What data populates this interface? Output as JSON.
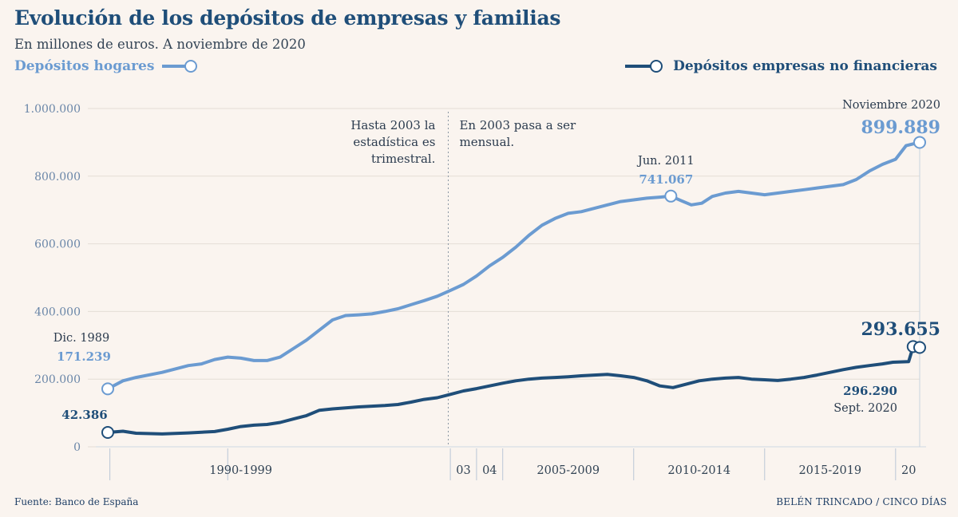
{
  "header": {
    "title": "Evolución de los depósitos de empresas y familias",
    "subtitle": "En millones de euros. A noviembre de 2020"
  },
  "legend": {
    "households": "Depósitos hogares",
    "companies": "Depósitos empresas no financieras"
  },
  "footer": {
    "source": "Fuente: Banco de España",
    "credit": "BELÉN TRINCADO / CINCO DÍAS"
  },
  "notes": {
    "before_2003": [
      "Hasta 2003 la",
      "estadística es",
      "trimestral."
    ],
    "after_2003": [
      "En 2003 pasa a ser",
      "mensual."
    ]
  },
  "annotations": {
    "hh_start_label": "Dic. 1989",
    "hh_start_value": "171.239",
    "co_start_value": "42.386",
    "hh_peak_label": "Jun. 2011",
    "hh_peak_value": "741.067",
    "hh_end_label": "Noviembre 2020",
    "hh_end_value": "899.889",
    "co_end_value": "293.655",
    "co_sept_value": "296.290",
    "co_sept_label": "Sept. 2020"
  },
  "colors": {
    "households": "#6b9bd1",
    "companies": "#1f4e79",
    "axis_text": "#6a86a8",
    "background": "#faf4ef"
  },
  "chart_data": {
    "type": "line",
    "yticks": [
      "1.000.000",
      "800.000",
      "600.000",
      "400.000",
      "200.000",
      "0"
    ],
    "ytick_values": [
      1000000,
      800000,
      600000,
      400000,
      200000,
      0
    ],
    "ylim": [
      0,
      1000000
    ],
    "xlim": [
      1989.92,
      2020.92
    ],
    "xtick_labels": [
      {
        "label": "1990-1999",
        "at": 1995.0
      },
      {
        "label": "03",
        "at": 2003.5
      },
      {
        "label": "04",
        "at": 2004.5
      },
      {
        "label": "2005-2009",
        "at": 2007.5
      },
      {
        "label": "2010-2014",
        "at": 2012.5
      },
      {
        "label": "2015-2019",
        "at": 2017.5
      },
      {
        "label": "20",
        "at": 2020.5
      }
    ],
    "xdividers": [
      1990.0,
      1994.5,
      2003.0,
      2004.0,
      2005.0,
      2010.0,
      2015.0,
      2020.0
    ],
    "reference_line": 2002.92,
    "series": [
      {
        "name": "Depósitos hogares",
        "x": [
          1989.92,
          1990.5,
          1991.0,
          1992.0,
          1993.0,
          1993.5,
          1994.0,
          1994.5,
          1995.0,
          1995.5,
          1996.0,
          1996.5,
          1997.0,
          1997.5,
          1998.0,
          1998.5,
          1999.0,
          1999.5,
          2000.0,
          2000.5,
          2001.0,
          2001.5,
          2002.0,
          2002.5,
          2003.0,
          2003.5,
          2004.0,
          2004.5,
          2005.0,
          2005.5,
          2006.0,
          2006.5,
          2007.0,
          2007.5,
          2008.0,
          2008.5,
          2009.0,
          2009.5,
          2010.0,
          2010.5,
          2011.0,
          2011.42,
          2011.8,
          2012.2,
          2012.6,
          2013.0,
          2013.5,
          2014.0,
          2014.5,
          2015.0,
          2015.5,
          2016.0,
          2016.5,
          2017.0,
          2017.5,
          2018.0,
          2018.5,
          2019.0,
          2019.5,
          2020.0,
          2020.4,
          2020.92
        ],
        "values": [
          171239,
          195000,
          205000,
          220000,
          240000,
          245000,
          258000,
          265000,
          262000,
          255000,
          255000,
          265000,
          290000,
          315000,
          345000,
          375000,
          388000,
          390000,
          393000,
          400000,
          408000,
          420000,
          432000,
          445000,
          462000,
          480000,
          505000,
          535000,
          560000,
          590000,
          625000,
          655000,
          675000,
          690000,
          695000,
          705000,
          715000,
          725000,
          730000,
          735000,
          738000,
          741067,
          728000,
          715000,
          720000,
          740000,
          750000,
          755000,
          750000,
          745000,
          750000,
          755000,
          760000,
          765000,
          770000,
          775000,
          790000,
          815000,
          835000,
          850000,
          890000,
          899889
        ]
      },
      {
        "name": "Depósitos empresas no financieras",
        "x": [
          1989.92,
          1990.5,
          1991.0,
          1992.0,
          1993.0,
          1994.0,
          1994.5,
          1995.0,
          1995.5,
          1996.0,
          1996.5,
          1997.0,
          1997.5,
          1998.0,
          1998.5,
          1999.0,
          1999.5,
          2000.0,
          2000.5,
          2001.0,
          2001.5,
          2002.0,
          2002.5,
          2003.0,
          2003.5,
          2004.0,
          2004.5,
          2005.0,
          2005.5,
          2006.0,
          2006.5,
          2007.0,
          2007.5,
          2008.0,
          2008.5,
          2009.0,
          2009.5,
          2010.0,
          2010.5,
          2011.0,
          2011.5,
          2012.0,
          2012.5,
          2013.0,
          2013.5,
          2014.0,
          2014.5,
          2015.0,
          2015.5,
          2016.0,
          2016.5,
          2017.0,
          2017.5,
          2018.0,
          2018.5,
          2019.0,
          2019.5,
          2019.9,
          2020.5,
          2020.67,
          2020.92
        ],
        "values": [
          42386,
          46000,
          40000,
          38000,
          41000,
          45000,
          52000,
          60000,
          64000,
          66000,
          72000,
          82000,
          92000,
          108000,
          112000,
          115000,
          118000,
          120000,
          122000,
          125000,
          132000,
          140000,
          145000,
          155000,
          165000,
          172000,
          180000,
          188000,
          195000,
          200000,
          203000,
          205000,
          207000,
          210000,
          212000,
          214000,
          210000,
          205000,
          195000,
          180000,
          175000,
          185000,
          195000,
          200000,
          203000,
          205000,
          200000,
          198000,
          196000,
          200000,
          205000,
          212000,
          220000,
          228000,
          235000,
          240000,
          245000,
          250000,
          252000,
          296290,
          293655
        ]
      }
    ]
  }
}
